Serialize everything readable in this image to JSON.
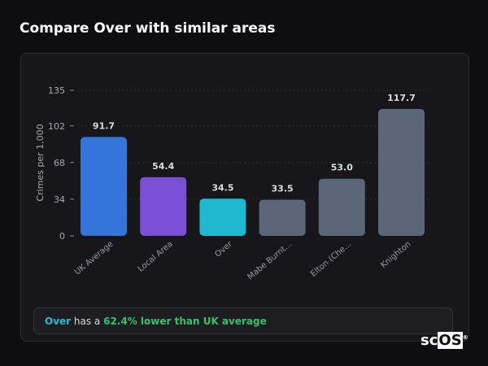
{
  "header": {
    "title": "Compare Over with similar areas"
  },
  "chart_data": {
    "type": "bar",
    "categories": [
      "UK Average",
      "Local Area",
      "Over",
      "Mabe Burnt...",
      "Elton (Che...",
      "Knighton"
    ],
    "values": [
      91.7,
      54.4,
      34.5,
      33.5,
      53.0,
      117.7
    ],
    "data_labels": [
      "91.7",
      "54.4",
      "34.5",
      "33.5",
      "53.0",
      "117.7"
    ],
    "colors": [
      "#3474db",
      "#7b4fd6",
      "#20b8d0",
      "#5b6678",
      "#5b6678",
      "#5b6678"
    ],
    "ylabel": "Crimes per 1,000",
    "xlabel": "",
    "yticks": [
      0,
      34,
      68,
      102,
      135
    ],
    "ylim": [
      0,
      135
    ],
    "grid": true
  },
  "summary": {
    "area": "Over",
    "middle": " has a ",
    "highlight": "62.4% lower than UK average"
  },
  "logo": {
    "prefix": "sc",
    "box": "OS",
    "mark": "®"
  }
}
